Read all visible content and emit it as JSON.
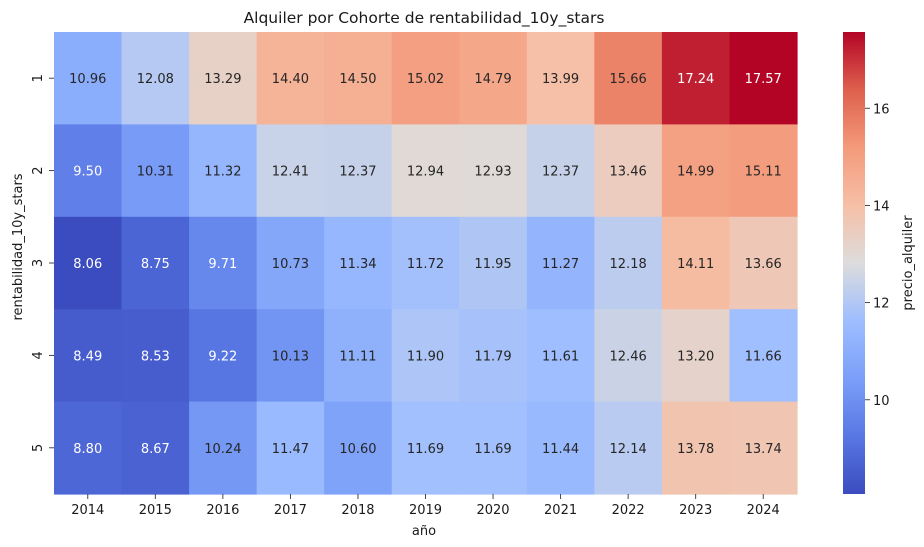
{
  "chart_data": {
    "type": "heatmap",
    "title": "Alquiler por Cohorte de rentabilidad_10y_stars",
    "xlabel": "año",
    "ylabel": "rentabilidad_10y_stars",
    "x_categories": [
      "2014",
      "2015",
      "2016",
      "2017",
      "2018",
      "2019",
      "2020",
      "2021",
      "2022",
      "2023",
      "2024"
    ],
    "y_categories": [
      "1",
      "2",
      "3",
      "4",
      "5"
    ],
    "values": [
      [
        10.96,
        12.08,
        13.29,
        14.4,
        14.5,
        15.02,
        14.79,
        13.99,
        15.66,
        17.24,
        17.57
      ],
      [
        9.5,
        10.31,
        11.32,
        12.41,
        12.37,
        12.94,
        12.93,
        12.37,
        13.46,
        14.99,
        15.11
      ],
      [
        8.06,
        8.75,
        9.71,
        10.73,
        11.34,
        11.72,
        11.95,
        11.27,
        12.18,
        14.11,
        13.66
      ],
      [
        8.49,
        8.53,
        9.22,
        10.13,
        11.11,
        11.9,
        11.79,
        11.61,
        12.46,
        13.2,
        11.66
      ],
      [
        8.8,
        8.67,
        10.24,
        11.47,
        10.6,
        11.69,
        11.69,
        11.44,
        12.14,
        13.78,
        13.74
      ]
    ],
    "colormap": "coolwarm",
    "colorbar": {
      "label": "precio_alquiler",
      "ticks": [
        "10",
        "12",
        "14",
        "16"
      ],
      "range": [
        8.06,
        17.57
      ]
    },
    "grid": false
  }
}
